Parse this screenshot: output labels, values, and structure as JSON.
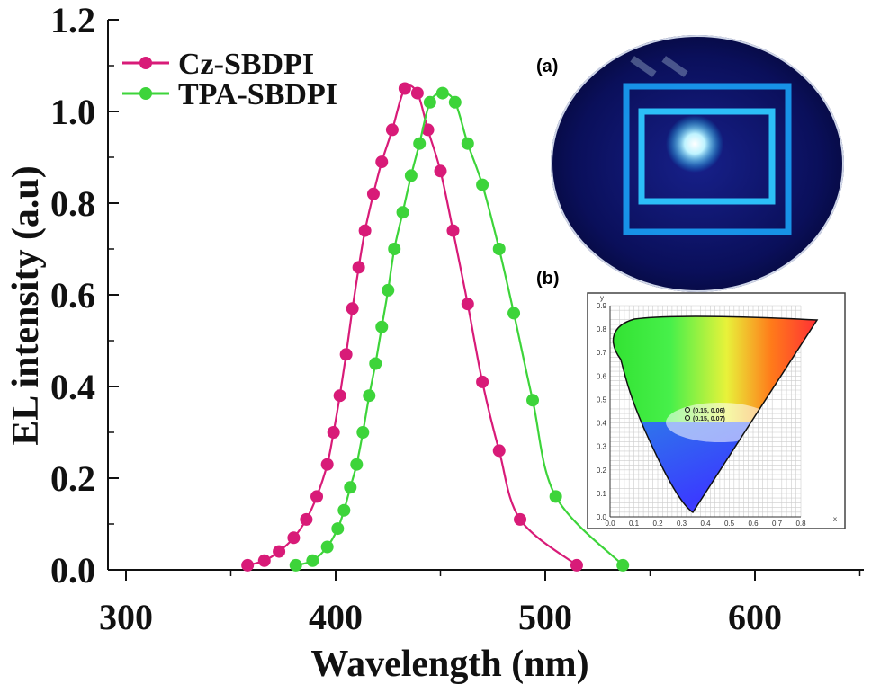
{
  "colors": {
    "cz": "#d81b78",
    "tpa": "#3dd43a",
    "axis": "#111111"
  },
  "insets": {
    "a_label": "(a)",
    "b_label": "(b)",
    "cie": {
      "x_axis_label": "x",
      "y_axis_label": "y",
      "x_ticks": [
        "0.0",
        "0.1",
        "0.2",
        "0.3",
        "0.4",
        "0.5",
        "0.6",
        "0.7",
        "0.8"
      ],
      "y_ticks": [
        "0.0",
        "0.1",
        "0.2",
        "0.3",
        "0.4",
        "0.5",
        "0.6",
        "0.7",
        "0.8",
        "0.9"
      ],
      "coord_1": "(0.15, 0.06)",
      "coord_2": "(0.15, 0.07)"
    }
  },
  "chart_data": {
    "type": "line",
    "title": "",
    "xlabel": "Wavelength (nm)",
    "ylabel": "EL intensity (a.u)",
    "xlim": [
      300,
      650
    ],
    "ylim": [
      0,
      1.2
    ],
    "x_ticks": [
      300,
      400,
      500,
      600
    ],
    "x_tick_labels": [
      "300",
      "400",
      "500",
      "600"
    ],
    "y_ticks": [
      0.0,
      0.2,
      0.4,
      0.6,
      0.8,
      1.0,
      1.2
    ],
    "y_tick_labels": [
      "0.0",
      "0.2",
      "0.4",
      "0.6",
      "0.8",
      "1.0",
      "1.2"
    ],
    "legend_position": "top-left",
    "series": [
      {
        "name": "Cz-SBDPI",
        "color": "#d81b78",
        "x": [
          358,
          366,
          373,
          380,
          386,
          391,
          396,
          399,
          402,
          405,
          408,
          411,
          414,
          418,
          422,
          427,
          433,
          439,
          444,
          450,
          456,
          463,
          470,
          478,
          488,
          515
        ],
        "y": [
          0.01,
          0.02,
          0.04,
          0.07,
          0.11,
          0.16,
          0.23,
          0.3,
          0.38,
          0.47,
          0.57,
          0.66,
          0.74,
          0.82,
          0.89,
          0.96,
          1.05,
          1.04,
          0.96,
          0.87,
          0.74,
          0.58,
          0.41,
          0.26,
          0.11,
          0.01
        ],
        "marker": "circle"
      },
      {
        "name": "TPA-SBDPI",
        "color": "#3dd43a",
        "x": [
          381,
          389,
          396,
          401,
          404,
          407,
          410,
          413,
          416,
          419,
          422,
          425,
          428,
          432,
          436,
          440,
          445,
          451,
          457,
          463,
          470,
          478,
          485,
          494,
          505,
          537
        ],
        "y": [
          0.01,
          0.02,
          0.05,
          0.09,
          0.13,
          0.18,
          0.23,
          0.3,
          0.38,
          0.45,
          0.53,
          0.61,
          0.7,
          0.78,
          0.86,
          0.93,
          1.02,
          1.04,
          1.02,
          0.93,
          0.84,
          0.7,
          0.56,
          0.37,
          0.16,
          0.01
        ],
        "marker": "circle"
      }
    ]
  }
}
